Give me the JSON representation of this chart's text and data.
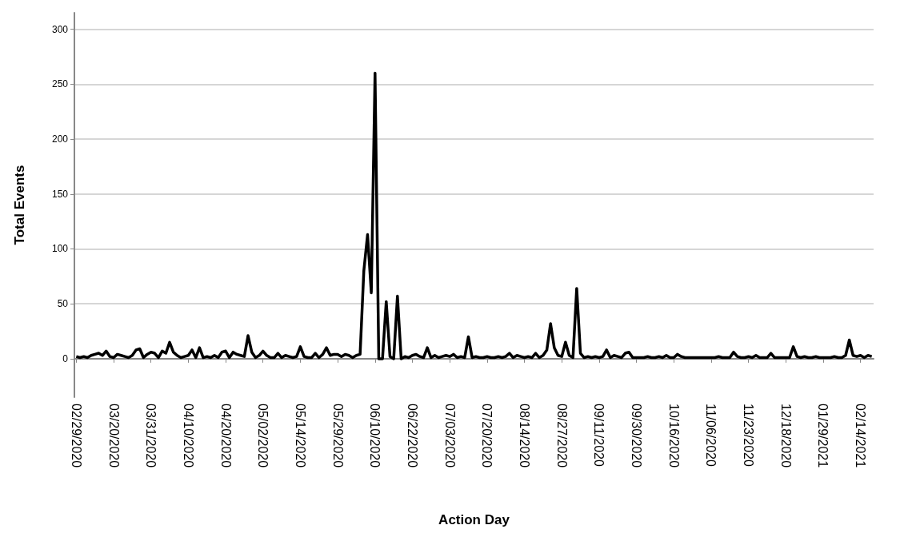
{
  "chart_data": {
    "type": "line",
    "xlabel": "Action Day",
    "ylabel": "Total Events",
    "categories": [
      "02/29/2020",
      null,
      null,
      null,
      null,
      null,
      null,
      null,
      null,
      null,
      "03/20/2020",
      null,
      null,
      null,
      null,
      null,
      null,
      null,
      null,
      null,
      "03/31/2020",
      null,
      null,
      null,
      null,
      null,
      null,
      null,
      null,
      null,
      "04/10/2020",
      null,
      null,
      null,
      null,
      null,
      null,
      null,
      null,
      null,
      "04/20/2020",
      null,
      null,
      null,
      null,
      null,
      null,
      null,
      null,
      null,
      "05/02/2020",
      null,
      null,
      null,
      null,
      null,
      null,
      null,
      null,
      null,
      "05/14/2020",
      null,
      null,
      null,
      null,
      null,
      null,
      null,
      null,
      null,
      "05/29/2020",
      null,
      null,
      null,
      null,
      null,
      null,
      null,
      null,
      null,
      "06/10/2020",
      null,
      null,
      null,
      null,
      null,
      null,
      null,
      null,
      null,
      "06/22/2020",
      null,
      null,
      null,
      null,
      null,
      null,
      null,
      null,
      null,
      "07/03/2020",
      null,
      null,
      null,
      null,
      null,
      null,
      null,
      null,
      null,
      "07/20/2020",
      null,
      null,
      null,
      null,
      null,
      null,
      null,
      null,
      null,
      "08/14/2020",
      null,
      null,
      null,
      null,
      null,
      null,
      null,
      null,
      null,
      "08/27/2020",
      null,
      null,
      null,
      null,
      null,
      null,
      null,
      null,
      null,
      "09/11/2020",
      null,
      null,
      null,
      null,
      null,
      null,
      null,
      null,
      null,
      "09/30/2020",
      null,
      null,
      null,
      null,
      null,
      null,
      null,
      null,
      null,
      "10/16/2020",
      null,
      null,
      null,
      null,
      null,
      null,
      null,
      null,
      null,
      "11/06/2020",
      null,
      null,
      null,
      null,
      null,
      null,
      null,
      null,
      null,
      "11/23/2020",
      null,
      null,
      null,
      null,
      null,
      null,
      null,
      null,
      null,
      "12/18/2020",
      null,
      null,
      null,
      null,
      null,
      null,
      null,
      null,
      null,
      "01/29/2021",
      null,
      null,
      null,
      null,
      null,
      null,
      null,
      null,
      null,
      "02/14/2021",
      null,
      null,
      null
    ],
    "series": [
      {
        "color": "#000000",
        "values": [
          2,
          1,
          2,
          1,
          3,
          4,
          5,
          3,
          7,
          2,
          1,
          4,
          3,
          2,
          1,
          3,
          8,
          9,
          1,
          4,
          6,
          5,
          1,
          7,
          5,
          15,
          6,
          3,
          1,
          2,
          3,
          8,
          1,
          10,
          1,
          2,
          1,
          3,
          1,
          6,
          7,
          1,
          6,
          4,
          3,
          2,
          21,
          6,
          1,
          3,
          7,
          3,
          1,
          1,
          5,
          1,
          3,
          2,
          1,
          2,
          11,
          2,
          1,
          1,
          5,
          1,
          4,
          10,
          3,
          4,
          4,
          2,
          4,
          3,
          1,
          3,
          4,
          80,
          113,
          60,
          260,
          0,
          0,
          52,
          2,
          0,
          57,
          0,
          2,
          1,
          3,
          4,
          2,
          1,
          10,
          1,
          3,
          1,
          2,
          3,
          2,
          4,
          1,
          2,
          1,
          20,
          1,
          2,
          1,
          1,
          2,
          1,
          1,
          2,
          1,
          2,
          5,
          1,
          3,
          2,
          1,
          2,
          1,
          5,
          1,
          3,
          8,
          32,
          10,
          3,
          2,
          15,
          3,
          1,
          64,
          5,
          1,
          2,
          1,
          2,
          1,
          2,
          8,
          1,
          3,
          2,
          1,
          5,
          6,
          1,
          1,
          1,
          1,
          2,
          1,
          1,
          2,
          1,
          3,
          1,
          1,
          4,
          2,
          1,
          1,
          1,
          1,
          1,
          1,
          1,
          1,
          1,
          2,
          1,
          1,
          1,
          6,
          2,
          1,
          1,
          2,
          1,
          3,
          1,
          1,
          1,
          5,
          1,
          1,
          1,
          1,
          1,
          11,
          2,
          1,
          2,
          1,
          1,
          2,
          1,
          1,
          1,
          1,
          2,
          1,
          1,
          3,
          17,
          3,
          2,
          3,
          1,
          3,
          2
        ]
      }
    ],
    "ylim": [
      -35,
      315
    ],
    "yticks": [
      0,
      50,
      100,
      150,
      200,
      250,
      300
    ],
    "grid": "y",
    "marker": "none",
    "line_style": "solid"
  }
}
